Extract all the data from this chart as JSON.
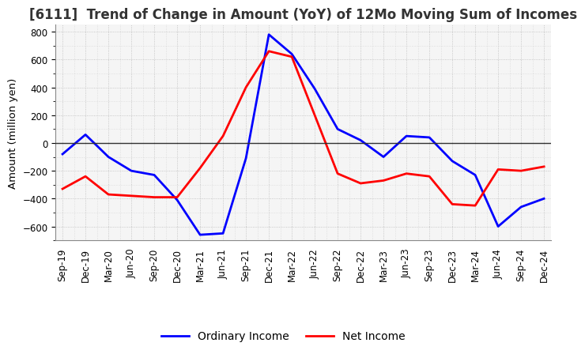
{
  "title": "[6111]  Trend of Change in Amount (YoY) of 12Mo Moving Sum of Incomes",
  "ylabel": "Amount (million yen)",
  "ylim": [
    -700,
    850
  ],
  "yticks": [
    -600,
    -400,
    -200,
    0,
    200,
    400,
    600,
    800
  ],
  "x_labels": [
    "Sep-19",
    "Dec-19",
    "Mar-20",
    "Jun-20",
    "Sep-20",
    "Dec-20",
    "Mar-21",
    "Jun-21",
    "Sep-21",
    "Dec-21",
    "Mar-22",
    "Jun-22",
    "Sep-22",
    "Dec-22",
    "Mar-23",
    "Jun-23",
    "Sep-23",
    "Dec-23",
    "Mar-24",
    "Jun-24",
    "Sep-24",
    "Dec-24"
  ],
  "ordinary_income": [
    -80,
    60,
    -100,
    -200,
    -230,
    -410,
    -660,
    -650,
    -110,
    780,
    640,
    390,
    100,
    20,
    -100,
    50,
    40,
    -130,
    -230,
    -600,
    -460,
    -400
  ],
  "net_income": [
    -330,
    -240,
    -370,
    -380,
    -390,
    -390,
    -180,
    50,
    400,
    660,
    620,
    200,
    -220,
    -290,
    -270,
    -220,
    -240,
    -440,
    -450,
    -190,
    -200,
    -170
  ],
  "ordinary_color": "#0000FF",
  "net_color": "#FF0000",
  "background_color": "#FFFFFF",
  "grid_color": "#AAAAAA",
  "title_fontsize": 12,
  "legend_fontsize": 10,
  "axis_fontsize": 8.5
}
